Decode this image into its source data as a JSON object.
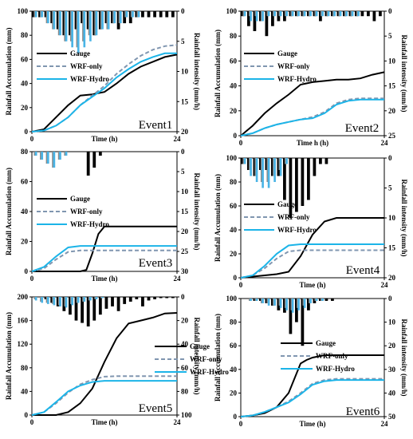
{
  "colors": {
    "gauge": "#000000",
    "wrf_only": "#8096b0",
    "wrf_hydro": "#1cb4e8",
    "rain_gauge_bar": "#000000",
    "rain_wrf_only_bar": "#8a8a8a",
    "rain_hydro_bar": "#49b4e6"
  },
  "legend": [
    "Gauge",
    "WRF-only",
    "WRF-Hydro"
  ],
  "chart_data": [
    {
      "type": "line",
      "event_label": "Event1",
      "xlabel": "Time (h)",
      "ylabel": "Rainfall Accumulation (mm)",
      "y2label": "Rainfall intensity (mm/h)",
      "xlim": [
        0,
        24
      ],
      "ylim": [
        0,
        100
      ],
      "y2lim": [
        0,
        20
      ],
      "yticks": [
        0,
        20,
        40,
        60,
        80,
        100
      ],
      "y2ticks": [
        0,
        5,
        10,
        15,
        20
      ],
      "x": [
        0,
        2,
        4,
        6,
        8,
        10,
        12,
        14,
        16,
        18,
        20,
        22,
        24
      ],
      "series": [
        {
          "name": "Gauge",
          "values": [
            0,
            2,
            12,
            22,
            30,
            31,
            33,
            40,
            48,
            54,
            58,
            62,
            64
          ]
        },
        {
          "name": "WRF-only",
          "values": [
            0,
            1,
            5,
            12,
            22,
            30,
            38,
            48,
            56,
            63,
            68,
            71,
            72
          ]
        },
        {
          "name": "WRF-Hydro",
          "values": [
            0,
            1,
            5,
            12,
            22,
            29,
            36,
            45,
            52,
            58,
            62,
            65,
            65
          ]
        }
      ],
      "rain_gauge": [
        1,
        1,
        1,
        2,
        3,
        4,
        4,
        3,
        2,
        3,
        4,
        3,
        2,
        2,
        3,
        2,
        2,
        1,
        1,
        1,
        1,
        1,
        1,
        1
      ],
      "rain_wrf_only": [
        1,
        1,
        2,
        3,
        4,
        5,
        5,
        6,
        5,
        4,
        4,
        3,
        3,
        2,
        2,
        1,
        1,
        1,
        0,
        0,
        0,
        0,
        0,
        0
      ],
      "rain_wrf_hydro": [
        1,
        1,
        2,
        3,
        4,
        5,
        6,
        7,
        6,
        5,
        4,
        3,
        3,
        2,
        2,
        1,
        1,
        1,
        0,
        0,
        0,
        0,
        0,
        0
      ]
    },
    {
      "type": "line",
      "event_label": "Event2",
      "xlabel": "Time h (h)",
      "ylabel": "Rainfall Accumulation (mm)",
      "y2label": "Rainfall intensity (mm/h)",
      "xlim": [
        0,
        24
      ],
      "ylim": [
        0,
        100
      ],
      "y2lim": [
        0,
        25
      ],
      "yticks": [
        0,
        20,
        40,
        60,
        80,
        100
      ],
      "y2ticks": [
        0,
        5,
        10,
        15,
        20,
        25
      ],
      "x": [
        0,
        2,
        4,
        6,
        8,
        10,
        12,
        14,
        16,
        18,
        20,
        22,
        24
      ],
      "series": [
        {
          "name": "Gauge",
          "values": [
            0,
            8,
            18,
            26,
            33,
            41,
            43,
            44,
            45,
            45,
            46,
            49,
            51
          ]
        },
        {
          "name": "WRF-only",
          "values": [
            0,
            2,
            6,
            9,
            11,
            13,
            15,
            19,
            26,
            29,
            30,
            30,
            30
          ]
        },
        {
          "name": "WRF-Hydro",
          "values": [
            0,
            2,
            6,
            9,
            11,
            13,
            14,
            18,
            25,
            28,
            29,
            29,
            29
          ]
        }
      ],
      "rain_gauge": [
        1,
        3,
        4,
        2,
        5,
        3,
        2,
        2,
        1,
        1,
        1,
        1,
        1,
        2,
        1,
        1,
        1,
        1,
        1,
        1,
        1,
        1,
        2,
        1
      ],
      "rain_wrf_only": [
        1,
        1,
        1,
        2,
        1,
        1,
        1,
        1,
        1,
        1,
        1,
        1,
        1,
        1,
        1,
        1,
        1,
        1,
        1,
        1,
        0,
        0,
        0,
        0
      ],
      "rain_wrf_hydro": [
        1,
        2,
        2,
        2,
        1,
        1,
        1,
        1,
        1,
        1,
        1,
        1,
        1,
        1,
        1,
        1,
        1,
        1,
        1,
        1,
        0,
        0,
        0,
        0
      ]
    },
    {
      "type": "line",
      "event_label": "Event3",
      "xlabel": "Time (h)",
      "ylabel": "Rainfall Accumulation (mm)",
      "y2label": "Rainfall intensity (mm/h)",
      "xlim": [
        0,
        24
      ],
      "ylim": [
        0,
        80
      ],
      "y2lim": [
        0,
        30
      ],
      "yticks": [
        0,
        20,
        40,
        60,
        80
      ],
      "y2ticks": [
        0,
        5,
        10,
        15,
        20,
        25,
        30
      ],
      "x": [
        0,
        2,
        4,
        6,
        8,
        9,
        10,
        11,
        12,
        14,
        16,
        18,
        20,
        22,
        24
      ],
      "series": [
        {
          "name": "Gauge",
          "values": [
            0,
            0,
            0,
            0,
            0,
            1,
            12,
            25,
            30,
            30,
            30,
            30,
            30,
            30,
            30
          ]
        },
        {
          "name": "WRF-only",
          "values": [
            0,
            2,
            8,
            13,
            14,
            14,
            14,
            14,
            14,
            14,
            14,
            14,
            14,
            14,
            14
          ]
        },
        {
          "name": "WRF-Hydro",
          "values": [
            0,
            3,
            10,
            16,
            17,
            17,
            17,
            17,
            17,
            17,
            17,
            17,
            17,
            17,
            17
          ]
        }
      ],
      "rain_gauge": [
        0,
        0,
        0,
        0,
        0,
        0,
        0,
        0,
        0,
        6,
        4,
        1,
        0,
        0,
        0,
        0,
        0,
        0,
        0,
        0,
        0,
        0,
        0,
        0
      ],
      "rain_wrf_only": [
        1,
        2,
        3,
        4,
        2,
        1,
        0,
        0,
        0,
        0,
        0,
        0,
        0,
        0,
        0,
        0,
        0,
        0,
        0,
        0,
        0,
        0,
        0,
        0
      ],
      "rain_wrf_hydro": [
        1,
        2,
        3,
        4,
        2,
        1,
        0,
        0,
        0,
        0,
        0,
        0,
        0,
        0,
        0,
        0,
        0,
        0,
        0,
        0,
        0,
        0,
        0,
        0
      ]
    },
    {
      "type": "line",
      "event_label": "Event4",
      "xlabel": "Time (h)",
      "ylabel": "Rainfall Accumulation (mm)",
      "y2label": "Rainfall intensity (mm/h)",
      "xlim": [
        0,
        24
      ],
      "ylim": [
        0,
        100
      ],
      "y2lim": [
        0,
        20
      ],
      "yticks": [
        0,
        20,
        40,
        60,
        80,
        100
      ],
      "y2ticks": [
        0,
        5,
        10,
        15,
        20
      ],
      "x": [
        0,
        2,
        4,
        6,
        8,
        10,
        12,
        14,
        16,
        18,
        20,
        22,
        24
      ],
      "series": [
        {
          "name": "Gauge",
          "values": [
            0,
            1,
            2,
            3,
            5,
            18,
            36,
            47,
            50,
            50,
            50,
            50,
            50
          ]
        },
        {
          "name": "WRF-only",
          "values": [
            0,
            2,
            8,
            16,
            22,
            23,
            23,
            23,
            23,
            23,
            23,
            23,
            23
          ]
        },
        {
          "name": "WRF-Hydro",
          "values": [
            0,
            2,
            10,
            20,
            27,
            28,
            28,
            28,
            28,
            28,
            28,
            28,
            28
          ]
        }
      ],
      "rain_gauge": [
        1,
        2,
        3,
        2,
        2,
        3,
        3,
        7,
        10,
        9,
        8,
        7,
        3,
        1,
        1,
        0,
        0,
        0,
        0,
        0,
        0,
        0,
        0,
        0
      ],
      "rain_wrf_only": [
        1,
        2,
        3,
        4,
        4,
        3,
        2,
        1,
        0,
        0,
        0,
        0,
        0,
        0,
        0,
        0,
        0,
        0,
        0,
        0,
        0,
        0,
        0,
        0
      ],
      "rain_wrf_hydro": [
        1,
        3,
        4,
        5,
        5,
        4,
        3,
        1,
        0,
        0,
        0,
        0,
        0,
        0,
        0,
        0,
        0,
        0,
        0,
        0,
        0,
        0,
        0,
        0
      ]
    },
    {
      "type": "line",
      "event_label": "Event5",
      "xlabel": "Time (h)",
      "ylabel": "Rainfall Accumulation (mm)",
      "y2label": "Rainfall intensity (mm/h)",
      "xlim": [
        0,
        24
      ],
      "ylim": [
        0,
        200
      ],
      "y2lim": [
        0,
        100
      ],
      "yticks": [
        0,
        40,
        80,
        120,
        160,
        200
      ],
      "y2ticks": [
        0,
        20,
        40,
        60,
        80,
        100
      ],
      "x": [
        0,
        2,
        4,
        6,
        8,
        10,
        12,
        14,
        16,
        18,
        20,
        22,
        24
      ],
      "series": [
        {
          "name": "Gauge",
          "values": [
            0,
            0,
            0,
            5,
            20,
            45,
            90,
            130,
            155,
            160,
            165,
            172,
            173
          ]
        },
        {
          "name": "WRF-only",
          "values": [
            0,
            5,
            20,
            38,
            52,
            60,
            65,
            66,
            66,
            66,
            66,
            66,
            66
          ]
        },
        {
          "name": "WRF-Hydro",
          "values": [
            0,
            5,
            22,
            40,
            50,
            56,
            58,
            58,
            58,
            58,
            58,
            58,
            58
          ]
        }
      ],
      "rain_gauge": [
        0,
        0,
        2,
        5,
        8,
        12,
        15,
        20,
        22,
        25,
        20,
        15,
        10,
        8,
        12,
        6,
        4,
        2,
        8,
        3,
        2,
        1,
        1,
        1
      ],
      "rain_wrf_only": [
        2,
        4,
        5,
        6,
        7,
        8,
        6,
        5,
        4,
        3,
        2,
        1,
        0,
        0,
        0,
        0,
        0,
        0,
        0,
        0,
        0,
        0,
        0,
        0
      ],
      "rain_wrf_hydro": [
        3,
        5,
        6,
        7,
        8,
        9,
        7,
        5,
        4,
        3,
        2,
        1,
        0,
        0,
        0,
        0,
        0,
        0,
        0,
        0,
        0,
        0,
        0,
        0
      ]
    },
    {
      "type": "line",
      "event_label": "Event6",
      "xlabel": "Time (h)",
      "ylabel": "Rainfall Accumulation (mm)",
      "y2label": "Rainfall intensity (mm/h)",
      "xlim": [
        0,
        24
      ],
      "ylim": [
        0,
        100
      ],
      "y2lim": [
        0,
        50
      ],
      "yticks": [
        0,
        20,
        40,
        60,
        80,
        100
      ],
      "y2ticks": [
        0,
        10,
        20,
        30,
        40,
        50
      ],
      "x": [
        0,
        2,
        4,
        6,
        8,
        10,
        11,
        12,
        14,
        16,
        18,
        20,
        22,
        24
      ],
      "series": [
        {
          "name": "Gauge",
          "values": [
            0,
            1,
            3,
            8,
            20,
            45,
            48,
            50,
            52,
            52,
            52,
            52,
            52,
            52
          ]
        },
        {
          "name": "WRF-only",
          "values": [
            0,
            1,
            4,
            8,
            13,
            20,
            24,
            28,
            31,
            32,
            32,
            32,
            32,
            32
          ]
        },
        {
          "name": "WRF-Hydro",
          "values": [
            0,
            1,
            4,
            8,
            12,
            19,
            23,
            27,
            30,
            31,
            31,
            31,
            31,
            31
          ]
        }
      ],
      "rain_gauge": [
        0,
        0,
        1,
        1,
        2,
        3,
        5,
        6,
        15,
        10,
        20,
        5,
        2,
        1,
        1,
        1,
        0,
        0,
        0,
        0,
        0,
        0,
        0,
        0
      ],
      "rain_wrf_only": [
        0,
        1,
        1,
        2,
        2,
        3,
        3,
        4,
        5,
        4,
        3,
        2,
        1,
        1,
        0,
        0,
        0,
        0,
        0,
        0,
        0,
        0,
        0,
        0
      ],
      "rain_wrf_hydro": [
        0,
        1,
        1,
        2,
        3,
        3,
        4,
        5,
        6,
        5,
        4,
        2,
        1,
        1,
        0,
        0,
        0,
        0,
        0,
        0,
        0,
        0,
        0,
        0
      ]
    }
  ]
}
